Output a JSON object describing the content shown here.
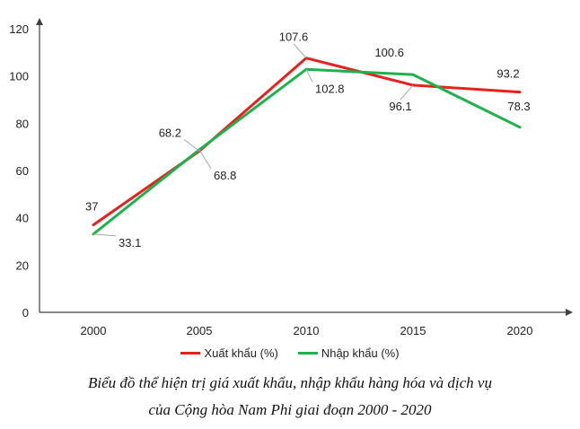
{
  "chart_data": {
    "type": "line",
    "categories": [
      "2000",
      "2005",
      "2010",
      "2015",
      "2020"
    ],
    "y_ticks": [
      "0",
      "20",
      "40",
      "60",
      "80",
      "100",
      "120"
    ],
    "ylim": [
      0,
      120
    ],
    "xlabel": "",
    "ylabel": "",
    "grid": false,
    "legend_position": "bottom",
    "series": [
      {
        "name": "Xuất khẩu (%)",
        "color": "#e8201e",
        "values": [
          37,
          68.2,
          107.6,
          96.1,
          93.2
        ],
        "labels": [
          "37",
          "68.2",
          "107.6",
          "96.1",
          "93.2"
        ]
      },
      {
        "name": "Nhập khẩu (%)",
        "color": "#1fb14b",
        "values": [
          33.1,
          68.8,
          102.8,
          100.6,
          78.3
        ],
        "labels": [
          "33.1",
          "68.8",
          "102.8",
          "100.6",
          "78.3"
        ]
      }
    ]
  },
  "caption": {
    "line1": "Biểu đồ thể hiện trị giá xuất khẩu, nhập khẩu hàng hóa và dịch vụ",
    "line2": "của Cộng hòa Nam Phi giai đoạn 2000 - 2020"
  }
}
